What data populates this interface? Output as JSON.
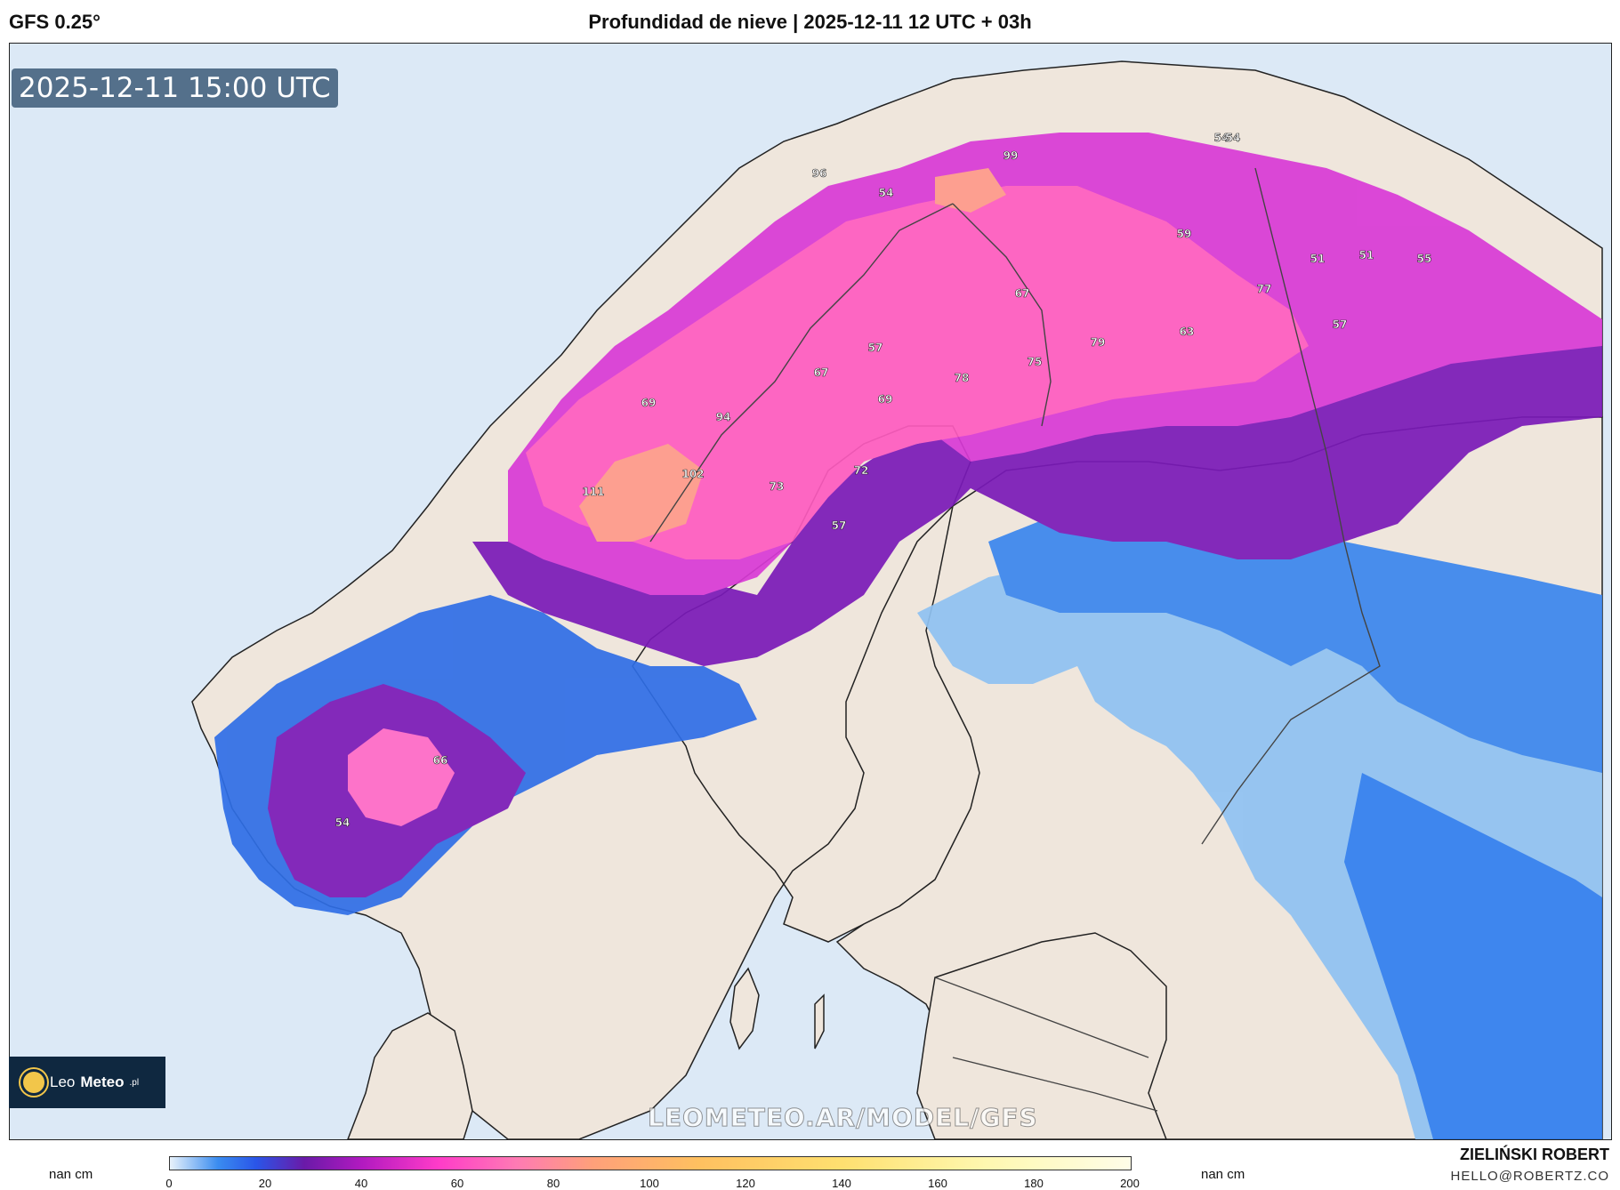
{
  "header": {
    "model": "GFS 0.25°",
    "title": "Profundidad de nieve | 2025-12-11 12 UTC + 03h"
  },
  "timestamp": "2025-12-11 15:00 UTC",
  "logo": {
    "text_light": "Leo",
    "text_bold": "Meteo",
    "suffix": ".pl"
  },
  "watermark": "LEOMETEO.AR/MODEL/GFS",
  "legend": {
    "nan_left": "nan cm",
    "nan_right": "nan cm",
    "ticks": [
      "0",
      "20",
      "40",
      "60",
      "80",
      "100",
      "120",
      "140",
      "160",
      "180",
      "200"
    ],
    "range": [
      0,
      200
    ]
  },
  "credit": {
    "name": "ZIELIŃSKI ROBERT",
    "email": "HELLO@ROBERTZ.CO"
  },
  "map_values": [
    "54",
    "99",
    "96",
    "54",
    "54",
    "59",
    "51",
    "51",
    "55",
    "67",
    "77",
    "57",
    "79",
    "63",
    "75",
    "57",
    "67",
    "78",
    "69",
    "69",
    "94",
    "72",
    "102",
    "73",
    "111",
    "57",
    "66",
    "54"
  ],
  "colors": {
    "water": "#dce9f6",
    "land": "#efe6dc",
    "snow_light": "#7fb8f0",
    "snow_blue": "#2f7ef0",
    "snow_purple": "#7a1ab8",
    "snow_magenta": "#e83ad0",
    "snow_pink": "#ff6ac8",
    "snow_salmon": "#ff9a8a"
  }
}
